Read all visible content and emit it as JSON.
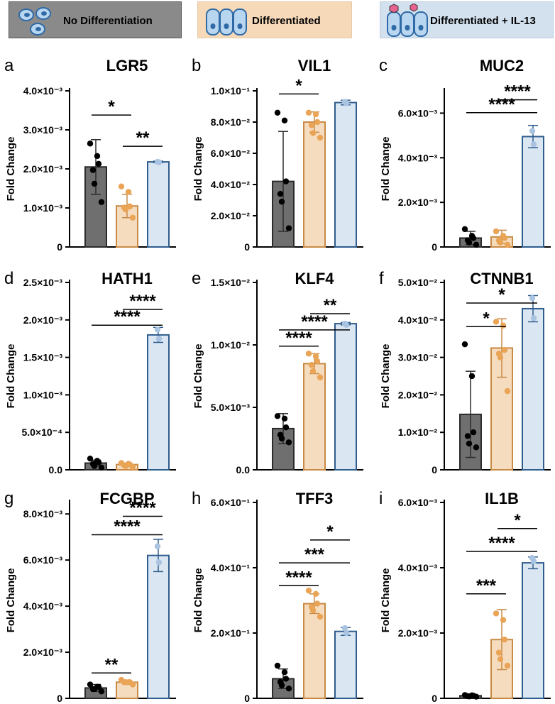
{
  "legend": [
    {
      "label": "No Differentiation",
      "color": "#8a8a8a",
      "icon": "single-cells-icon"
    },
    {
      "label": "Differentiated",
      "color": "#f5d9b9",
      "icon": "epithelial-cells-icon"
    },
    {
      "label": "Differentiated + IL-13",
      "color": "#d3e1ef",
      "icon": "epithelial-cells-il13-icon"
    }
  ],
  "colors": {
    "group_fills": [
      "#6f6f6f",
      "#f6dcbf",
      "#dae6f2"
    ],
    "group_strokes": [
      "#2b2b2b",
      "#c88a45",
      "#2f5d8e"
    ],
    "dot_colors": [
      "#000000",
      "#e9a456",
      "#a9c3e0"
    ]
  },
  "ylabel": "Fold Change",
  "chart_data": [
    {
      "type": "bar",
      "letter": "a",
      "title": "LGR5",
      "tick_labels": [
        "0",
        "1.0×10⁻³",
        "2.0×10⁻³",
        "3.0×10⁻³",
        "4.0×10⁻³"
      ],
      "ylim": [
        0,
        0.004
      ],
      "means": [
        0.00205,
        0.00105,
        0.00218
      ],
      "sd": [
        0.0007,
        0.0003,
        2e-05
      ],
      "points": [
        [
          0.00265,
          0.00233,
          0.00213,
          0.00197,
          0.00162,
          0.00115
        ],
        [
          0.00155,
          0.00141,
          0.00104,
          0.00101,
          0.00096,
          0.00075
        ],
        [
          0.00218,
          0.00217
        ]
      ],
      "sig": [
        {
          "from": 0,
          "to": 1,
          "y": 0.00338,
          "label": "*"
        },
        {
          "from": 1,
          "to": 2,
          "y": 0.00258,
          "label": "**"
        }
      ]
    },
    {
      "type": "bar",
      "letter": "b",
      "title": "VIL1",
      "tick_labels": [
        "0",
        "2.0×10⁻²",
        "4.0×10⁻²",
        "6.0×10⁻²",
        "8.0×10⁻²",
        "1.0×10⁻¹"
      ],
      "ylim": [
        0,
        0.1
      ],
      "means": [
        0.042,
        0.08,
        0.0925
      ],
      "sd": [
        0.032,
        0.0065,
        0.0015
      ],
      "points": [
        [
          0.086,
          0.081,
          0.042,
          0.034,
          0.029,
          0.012
        ],
        [
          0.086,
          0.085,
          0.08,
          0.078,
          0.073,
          0.07
        ],
        [
          0.093,
          0.092
        ]
      ],
      "sig": [
        {
          "from": 0,
          "to": 1,
          "y": 0.098,
          "label": "*"
        }
      ]
    },
    {
      "type": "bar",
      "letter": "c",
      "title": "MUC2",
      "tick_labels": [
        "0",
        "2.0×10⁻³",
        "4.0×10⁻³",
        "6.0×10⁻³"
      ],
      "ylim": [
        0,
        0.007
      ],
      "means": [
        0.0004,
        0.00045,
        0.00495
      ],
      "sd": [
        0.0003,
        0.0003,
        0.0005
      ],
      "points": [
        [
          0.0008,
          0.0005,
          0.0004,
          0.0003,
          0.0002,
          0.0001
        ],
        [
          0.0007,
          0.0005,
          0.0004,
          0.0003,
          0.0002,
          0.0001
        ],
        [
          0.0052,
          0.0046
        ]
      ],
      "sig": [
        {
          "from": 0,
          "to": 2,
          "y": 0.00602,
          "label": "****"
        },
        {
          "from": 1,
          "to": 2,
          "y": 0.0066,
          "label": "****"
        }
      ]
    },
    {
      "type": "bar",
      "letter": "d",
      "title": "HATH1",
      "tick_labels": [
        "0.0",
        "5.0×10⁻⁴",
        "1.0×10⁻³",
        "1.5×10⁻³",
        "2.0×10⁻³",
        "2.5×10⁻³"
      ],
      "ylim": [
        0,
        0.0025
      ],
      "means": [
        9e-05,
        7e-05,
        0.0018
      ],
      "sd": [
        4e-05,
        2e-05,
        0.0001
      ],
      "points": [
        [
          0.00015,
          0.00012,
          0.0001,
          8e-05,
          5e-05,
          3e-05
        ],
        [
          9e-05,
          8e-05,
          7e-05,
          6e-05,
          5e-05,
          4e-05
        ],
        [
          0.00187,
          0.00175
        ]
      ],
      "sig": [
        {
          "from": 0,
          "to": 2,
          "y": 0.00193,
          "label": "****"
        },
        {
          "from": 1,
          "to": 2,
          "y": 0.00214,
          "label": "****"
        }
      ]
    },
    {
      "type": "bar",
      "letter": "e",
      "title": "KLF4",
      "tick_labels": [
        "0.0",
        "5.0×10⁻³",
        "1.0×10⁻²",
        "1.5×10⁻²"
      ],
      "ylim": [
        0,
        0.015
      ],
      "means": [
        0.0033,
        0.0085,
        0.0117
      ],
      "sd": [
        0.0012,
        0.0008,
        0.0001
      ],
      "points": [
        [
          0.0043,
          0.0041,
          0.0034,
          0.0028,
          0.0025,
          0.0022
        ],
        [
          0.0093,
          0.0091,
          0.0087,
          0.0084,
          0.0079,
          0.0074
        ],
        [
          0.0117,
          0.0116
        ]
      ],
      "sig": [
        {
          "from": 0,
          "to": 1,
          "y": 0.0099,
          "label": "****"
        },
        {
          "from": 0,
          "to": 2,
          "y": 0.0112,
          "label": "****"
        },
        {
          "from": 1,
          "to": 2,
          "y": 0.0125,
          "label": "**"
        }
      ]
    },
    {
      "type": "bar",
      "letter": "f",
      "title": "CTNNB1",
      "tick_labels": [
        "0",
        "1.0×10⁻²",
        "2.0×10⁻²",
        "3.0×10⁻²",
        "4.0×10⁻²",
        "5.0×10⁻²"
      ],
      "ylim": [
        0,
        0.05
      ],
      "means": [
        0.0148,
        0.0325,
        0.043
      ],
      "sd": [
        0.0115,
        0.0078,
        0.0035
      ],
      "points": [
        [
          0.0335,
          0.025,
          0.01,
          0.009,
          0.007,
          0.006
        ],
        [
          0.0395,
          0.0385,
          0.032,
          0.031,
          0.03,
          0.021
        ],
        [
          0.0458,
          0.0405
        ]
      ],
      "sig": [
        {
          "from": 0,
          "to": 1,
          "y": 0.0382,
          "label": "*"
        },
        {
          "from": 0,
          "to": 2,
          "y": 0.0445,
          "label": "*"
        }
      ]
    },
    {
      "type": "bar",
      "letter": "g",
      "title": "FCGBP",
      "tick_labels": [
        "0",
        "2.0×10⁻³",
        "4.0×10⁻³",
        "6.0×10⁻³",
        "8.0×10⁻³"
      ],
      "ylim": [
        0,
        0.0085
      ],
      "means": [
        0.00045,
        0.0007,
        0.0062
      ],
      "sd": [
        0.00015,
        5e-05,
        0.0007
      ],
      "points": [
        [
          0.0006,
          0.0005,
          0.0005,
          0.0004,
          0.0004,
          0.0003
        ],
        [
          0.0008,
          0.0007,
          0.0007,
          0.0007,
          0.0007,
          0.0006
        ],
        [
          0.0066,
          0.0059
        ]
      ],
      "sig": [
        {
          "from": 0,
          "to": 1,
          "y": 0.0011,
          "label": "**"
        },
        {
          "from": 0,
          "to": 2,
          "y": 0.0071,
          "label": "****"
        },
        {
          "from": 1,
          "to": 2,
          "y": 0.0079,
          "label": "****"
        }
      ]
    },
    {
      "type": "bar",
      "letter": "h",
      "title": "TFF3",
      "tick_labels": [
        "0",
        "2.0×10⁻¹",
        "4.0×10⁻¹",
        "6.0×10⁻¹"
      ],
      "ylim": [
        0,
        0.6
      ],
      "means": [
        0.06,
        0.29,
        0.205
      ],
      "sd": [
        0.03,
        0.03,
        0.012
      ],
      "points": [
        [
          0.1,
          0.08,
          0.06,
          0.05,
          0.04,
          0.03
        ],
        [
          0.33,
          0.32,
          0.29,
          0.28,
          0.27,
          0.25
        ],
        [
          0.215,
          0.2
        ]
      ],
      "sig": [
        {
          "from": 0,
          "to": 1,
          "y": 0.345,
          "label": "****"
        },
        {
          "from": 0,
          "to": 2,
          "y": 0.415,
          "label": "***"
        },
        {
          "from": 1,
          "to": 2,
          "y": 0.485,
          "label": "*"
        }
      ]
    },
    {
      "type": "bar",
      "letter": "i",
      "title": "IL1B",
      "tick_labels": [
        "0",
        "2.0×10⁻³",
        "4.0×10⁻³",
        "6.0×10⁻³"
      ],
      "ylim": [
        0,
        0.006
      ],
      "means": [
        8e-05,
        0.0018,
        0.00415
      ],
      "sd": [
        3e-05,
        0.00092,
        0.00018
      ],
      "points": [
        [
          0.0001,
          9e-05,
          8e-05,
          7e-05,
          6e-05,
          5e-05
        ],
        [
          0.0026,
          0.0024,
          0.0018,
          0.0014,
          0.0012,
          0.001
        ],
        [
          0.0043,
          0.0042
        ]
      ],
      "sig": [
        {
          "from": 0,
          "to": 1,
          "y": 0.0032,
          "label": "***"
        },
        {
          "from": 0,
          "to": 2,
          "y": 0.0045,
          "label": "****"
        },
        {
          "from": 1,
          "to": 2,
          "y": 0.0052,
          "label": "*"
        }
      ]
    }
  ]
}
